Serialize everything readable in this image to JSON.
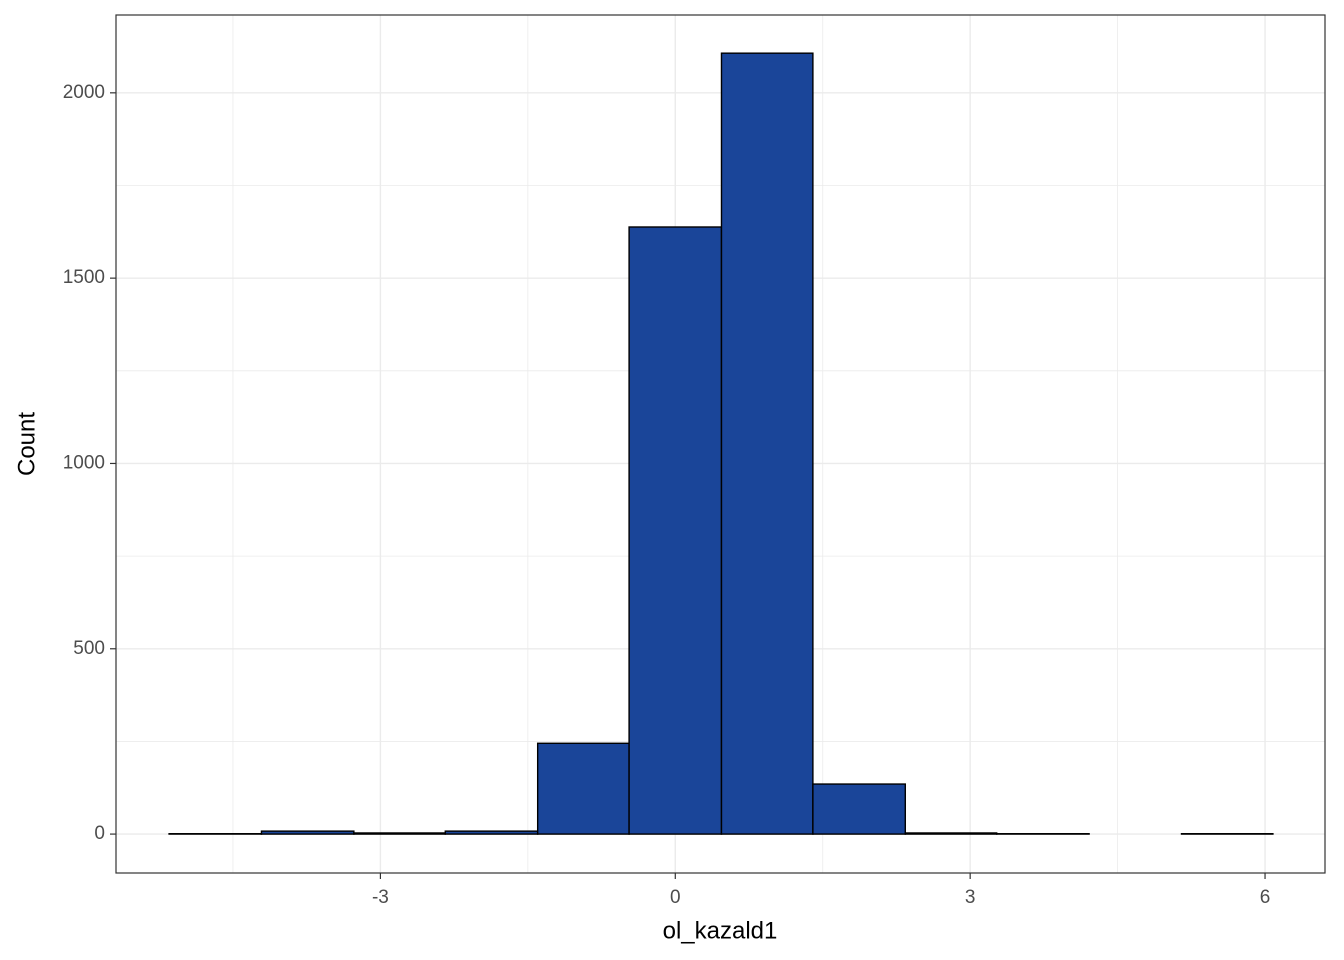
{
  "chart_data": {
    "type": "histogram",
    "x_label": "ol_kazald1",
    "y_label": "Count",
    "bins": [
      -5.15,
      -4.21,
      -3.27,
      -2.34,
      -1.4,
      -0.47,
      0.47,
      1.4,
      2.34,
      3.27,
      4.21,
      5.15,
      6.08
    ],
    "values": [
      1,
      8,
      3,
      8,
      245,
      1638,
      2107,
      135,
      3,
      1,
      0,
      1
    ],
    "color": "#1a4599",
    "xlim": [
      -5.69,
      6.61
    ],
    "xticks": [
      -3,
      0,
      3,
      6
    ],
    "ylim": [
      -105,
      2210
    ],
    "yticks": [
      0,
      500,
      1000,
      1500,
      2000
    ],
    "grid": true
  }
}
